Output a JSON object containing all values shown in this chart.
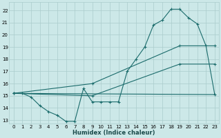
{
  "xlabel": "Humidex (Indice chaleur)",
  "bg_color": "#cce8e8",
  "grid_color": "#aacccc",
  "line_color": "#1a6b6b",
  "xlim": [
    -0.5,
    23.5
  ],
  "ylim": [
    12.7,
    22.7
  ],
  "yticks": [
    13,
    14,
    15,
    16,
    17,
    18,
    19,
    20,
    21,
    22
  ],
  "xticks": [
    0,
    1,
    2,
    3,
    4,
    5,
    6,
    7,
    8,
    9,
    10,
    11,
    12,
    13,
    14,
    15,
    16,
    17,
    18,
    19,
    20,
    21,
    22,
    23
  ],
  "series1_x": [
    0,
    1,
    2,
    3,
    4,
    5,
    6,
    7,
    8,
    9,
    10,
    11,
    12,
    13,
    14,
    15,
    16,
    17,
    18,
    19,
    20,
    21,
    22,
    23
  ],
  "series1_y": [
    15.2,
    15.2,
    14.9,
    14.2,
    13.7,
    13.4,
    12.9,
    12.9,
    15.6,
    14.5,
    14.5,
    14.5,
    14.5,
    17.0,
    18.0,
    19.0,
    20.8,
    21.2,
    22.1,
    22.1,
    21.4,
    20.9,
    19.1,
    15.1
  ],
  "series2_x": [
    0,
    23
  ],
  "series2_y": [
    15.2,
    15.1
  ],
  "series3_x": [
    0,
    9,
    19,
    23
  ],
  "series3_y": [
    15.2,
    16.0,
    19.1,
    19.1
  ],
  "series4_x": [
    0,
    9,
    19,
    23
  ],
  "series4_y": [
    15.2,
    15.0,
    17.6,
    17.6
  ]
}
